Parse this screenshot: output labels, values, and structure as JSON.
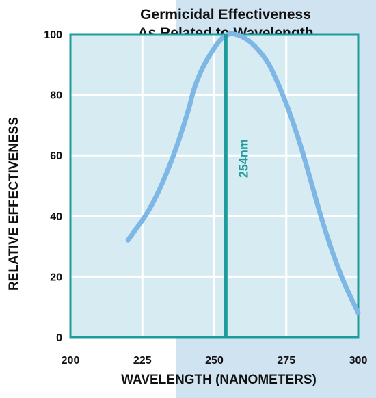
{
  "colors": {
    "plot_background": "#d6ebf2",
    "plot_border": "#1e9c9c",
    "grid": "#ffffff",
    "curve": "#7eb6e6",
    "marker": "#1e9c9c",
    "right_band": "#cfe3f0"
  },
  "chart_data": {
    "type": "line",
    "title": [
      "Germicidal Effectiveness",
      "As Related to Wavelength"
    ],
    "xlabel": "WAVELENGTH (NANOMETERS)",
    "ylabel": "RELATIVE EFFECTIVENESS",
    "xlim": [
      200,
      300
    ],
    "ylim": [
      0,
      100
    ],
    "xticks": [
      "200",
      "225",
      "250",
      "275",
      "300"
    ],
    "yticks": [
      "0",
      "20",
      "40",
      "60",
      "80",
      "100"
    ],
    "grid": true,
    "series": [
      {
        "x": [
          220,
          223,
          226,
          229,
          232,
          235,
          238,
          241,
          243,
          246,
          249,
          252,
          255,
          257,
          260,
          263,
          266,
          269,
          272,
          275,
          278,
          281,
          284,
          287,
          290,
          293,
          296,
          300
        ],
        "y": [
          32,
          36,
          40,
          45,
          51,
          58,
          66,
          75,
          82,
          89,
          94,
          98,
          100,
          100,
          99,
          97,
          94,
          90,
          84,
          77,
          69,
          60,
          50,
          40,
          31,
          23,
          16,
          8
        ]
      }
    ],
    "annotations": [
      {
        "type": "vline",
        "x": 254,
        "y_range": [
          0,
          100
        ],
        "label": "254nm"
      }
    ]
  }
}
